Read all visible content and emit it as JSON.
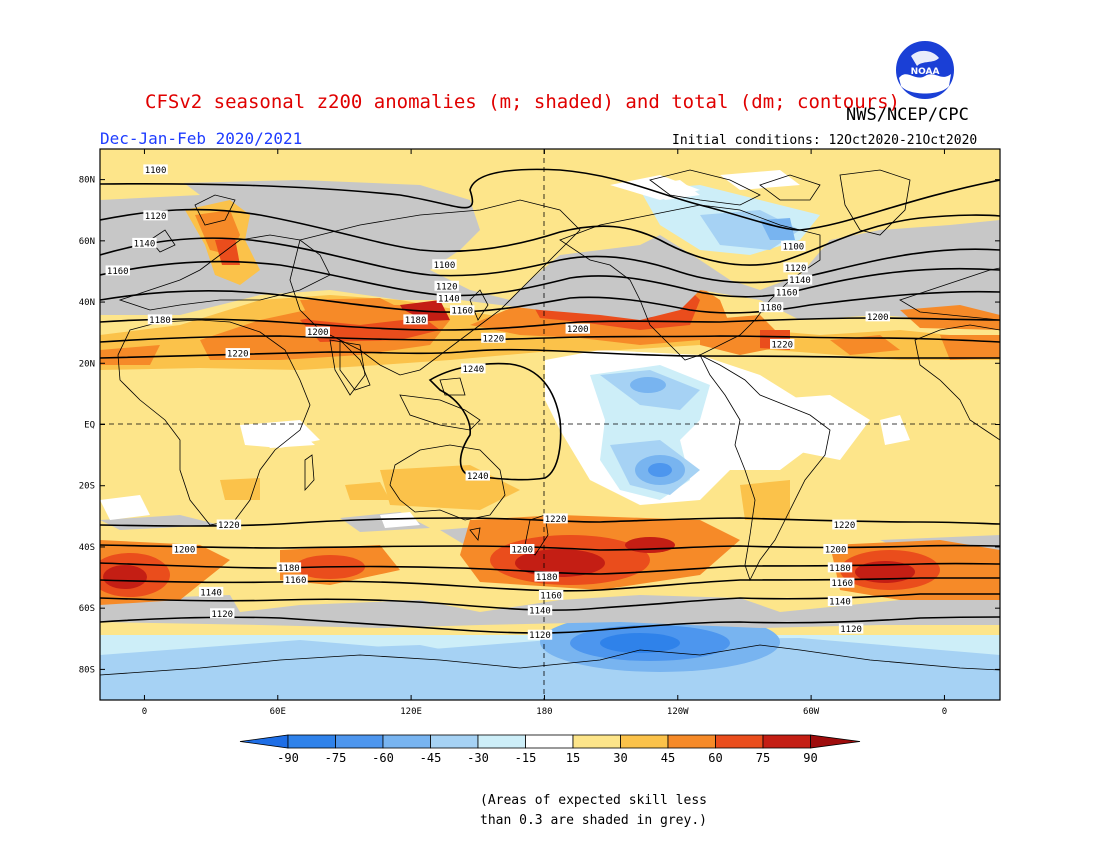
{
  "header": {
    "title": "CFSv2 seasonal z200 anomalies (m; shaded) and total (dm; contours)",
    "agency": "NWS/NCEP/CPC",
    "season": "Dec-Jan-Feb 2020/2021",
    "initial_conditions": "Initial conditions: 12Oct2020-21Oct2020"
  },
  "map": {
    "lat_ticks": [
      "80N",
      "60N",
      "40N",
      "20N",
      "EQ",
      "20S",
      "40S",
      "60S",
      "80S"
    ],
    "lat_values": [
      80,
      60,
      40,
      20,
      0,
      -20,
      -40,
      -60,
      -80
    ],
    "lon_ticks": [
      "0",
      "60E",
      "120E",
      "180",
      "120W",
      "60W",
      "0"
    ],
    "lon_values": [
      0,
      60,
      120,
      180,
      240,
      300,
      360
    ],
    "lon_range": [
      -20,
      385
    ],
    "lat_range": [
      -90,
      90
    ],
    "projection": "cylindrical equidistant",
    "contour_labels": [
      {
        "text": "1100",
        "lon": 5,
        "lat": 83
      },
      {
        "text": "1120",
        "lon": 5,
        "lat": 68
      },
      {
        "text": "1140",
        "lon": 0,
        "lat": 59
      },
      {
        "text": "1160",
        "lon": -12,
        "lat": 50
      },
      {
        "text": "1180",
        "lon": 7,
        "lat": 34
      },
      {
        "text": "1200",
        "lon": 78,
        "lat": 30
      },
      {
        "text": "1220",
        "lon": 42,
        "lat": 23
      },
      {
        "text": "1180",
        "lon": 122,
        "lat": 34
      },
      {
        "text": "1100",
        "lon": 135,
        "lat": 52
      },
      {
        "text": "1120",
        "lon": 136,
        "lat": 45
      },
      {
        "text": "1140",
        "lon": 137,
        "lat": 41
      },
      {
        "text": "1160",
        "lon": 143,
        "lat": 37
      },
      {
        "text": "1220",
        "lon": 157,
        "lat": 28
      },
      {
        "text": "1240",
        "lon": 148,
        "lat": 18
      },
      {
        "text": "1200",
        "lon": 195,
        "lat": 31
      },
      {
        "text": "1100",
        "lon": 292,
        "lat": 58
      },
      {
        "text": "1120",
        "lon": 293,
        "lat": 51
      },
      {
        "text": "1140",
        "lon": 295,
        "lat": 47
      },
      {
        "text": "1160",
        "lon": 289,
        "lat": 43
      },
      {
        "text": "1180",
        "lon": 282,
        "lat": 38
      },
      {
        "text": "1220",
        "lon": 287,
        "lat": 26
      },
      {
        "text": "1200",
        "lon": 330,
        "lat": 35
      },
      {
        "text": "1240",
        "lon": 150,
        "lat": -17
      },
      {
        "text": "1220",
        "lon": 38,
        "lat": -33
      },
      {
        "text": "1200",
        "lon": 18,
        "lat": -41
      },
      {
        "text": "1180",
        "lon": 65,
        "lat": -47
      },
      {
        "text": "1160",
        "lon": 68,
        "lat": -51
      },
      {
        "text": "1140",
        "lon": 30,
        "lat": -55
      },
      {
        "text": "1120",
        "lon": 35,
        "lat": -62
      },
      {
        "text": "1220",
        "lon": 185,
        "lat": -31
      },
      {
        "text": "1200",
        "lon": 170,
        "lat": -41
      },
      {
        "text": "1180",
        "lon": 181,
        "lat": -50
      },
      {
        "text": "1160",
        "lon": 183,
        "lat": -56
      },
      {
        "text": "1140",
        "lon": 178,
        "lat": -61
      },
      {
        "text": "1120",
        "lon": 178,
        "lat": -69
      },
      {
        "text": "1220",
        "lon": 315,
        "lat": -33
      },
      {
        "text": "1200",
        "lon": 311,
        "lat": -41
      },
      {
        "text": "1180",
        "lon": 313,
        "lat": -47
      },
      {
        "text": "1160",
        "lon": 314,
        "lat": -52
      },
      {
        "text": "1140",
        "lon": 313,
        "lat": -58
      },
      {
        "text": "1120",
        "lon": 318,
        "lat": -67
      }
    ]
  },
  "colorbar": {
    "ticks": [
      "-90",
      "-75",
      "-60",
      "-45",
      "-30",
      "-15",
      "15",
      "30",
      "45",
      "60",
      "75",
      "90"
    ],
    "colors": [
      "#1e6ee6",
      "#2f82ea",
      "#4d96ee",
      "#78b4f0",
      "#a6d2f4",
      "#cdeef8",
      "#ffffff",
      "#fde58a",
      "#fbc24a",
      "#f68a28",
      "#ea4d1c",
      "#c41e14",
      "#9e0c0c"
    ]
  },
  "note": {
    "line1": "(Areas of expected skill less",
    "line2": "than 0.3 are shaded in grey.)"
  }
}
